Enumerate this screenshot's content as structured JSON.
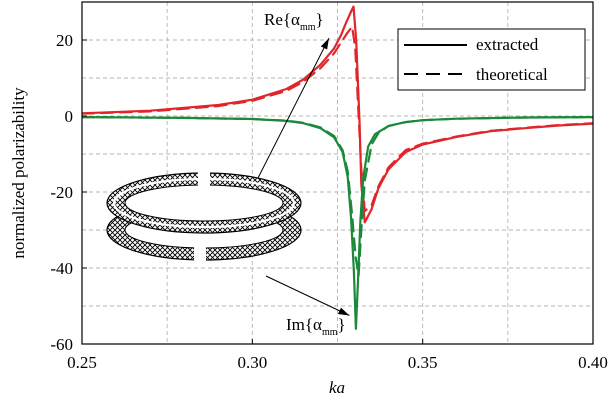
{
  "chart_data": {
    "type": "line",
    "xlabel": "ka",
    "ylabel": "normalized polarizability",
    "xlim": [
      0.25,
      0.4
    ],
    "ylim": [
      -60,
      30
    ],
    "xticks": [
      0.25,
      0.3,
      0.35,
      0.4
    ],
    "yticks": [
      -60,
      -40,
      -20,
      0,
      20
    ],
    "xtick_labels": [
      "0.25",
      "0.30",
      "0.35",
      "0.40"
    ],
    "ytick_labels": [
      "-60",
      "-40",
      "-20",
      "0",
      "20"
    ],
    "grid": true,
    "legend_position": "top-right",
    "legend": [
      {
        "label": "extracted",
        "style": "solid"
      },
      {
        "label": "theoretical",
        "style": "dashed"
      }
    ],
    "series": [
      {
        "component": "real",
        "style": "solid",
        "color": "#e0262b",
        "x": [
          0.25,
          0.27,
          0.29,
          0.3,
          0.31,
          0.315,
          0.32,
          0.324,
          0.326,
          0.3275,
          0.329,
          0.3297,
          0.3305,
          0.3315,
          0.332,
          0.333,
          0.335,
          0.337,
          0.34,
          0.345,
          0.35,
          0.36,
          0.37,
          0.38,
          0.39,
          0.4
        ],
        "y": [
          0.7,
          1.4,
          2.9,
          4.3,
          7.1,
          9.6,
          13.5,
          17.8,
          21.2,
          24.5,
          27.5,
          28.8,
          20.0,
          -2.0,
          -18.0,
          -28.0,
          -24.5,
          -19.0,
          -14.0,
          -9.5,
          -7.5,
          -5.5,
          -4.0,
          -3.2,
          -2.5,
          -2.0
        ]
      },
      {
        "component": "real",
        "style": "dashed",
        "color": "#e0262b",
        "x": [
          0.25,
          0.27,
          0.29,
          0.3,
          0.31,
          0.315,
          0.32,
          0.324,
          0.326,
          0.328,
          0.3293,
          0.3302,
          0.331,
          0.332,
          0.333,
          0.335,
          0.337,
          0.34,
          0.345,
          0.35,
          0.36,
          0.37,
          0.38,
          0.39,
          0.4
        ],
        "y": [
          0.6,
          1.2,
          2.6,
          4.0,
          6.6,
          9.0,
          12.6,
          16.5,
          19.3,
          22.0,
          23.5,
          18.0,
          4.0,
          -14.0,
          -25.0,
          -23.5,
          -18.5,
          -13.5,
          -9.0,
          -7.3,
          -5.4,
          -3.9,
          -3.1,
          -2.4,
          -1.9
        ]
      },
      {
        "component": "imaginary",
        "style": "solid",
        "color": "#1a8a3a",
        "x": [
          0.25,
          0.28,
          0.3,
          0.31,
          0.315,
          0.32,
          0.324,
          0.3265,
          0.328,
          0.329,
          0.3298,
          0.3304,
          0.331,
          0.3317,
          0.3325,
          0.334,
          0.336,
          0.34,
          0.345,
          0.35,
          0.36,
          0.38,
          0.4
        ],
        "y": [
          -0.3,
          -0.5,
          -0.8,
          -1.3,
          -1.9,
          -3.2,
          -5.6,
          -9.5,
          -16.0,
          -27.0,
          -41.0,
          -56.0,
          -44.0,
          -28.0,
          -16.5,
          -8.0,
          -4.8,
          -2.6,
          -1.6,
          -1.1,
          -0.7,
          -0.4,
          -0.3
        ]
      },
      {
        "component": "imaginary",
        "style": "dashed",
        "color": "#1a8a3a",
        "x": [
          0.25,
          0.28,
          0.3,
          0.31,
          0.315,
          0.32,
          0.324,
          0.3265,
          0.328,
          0.3293,
          0.3303,
          0.3312,
          0.332,
          0.333,
          0.335,
          0.337,
          0.34,
          0.345,
          0.35,
          0.36,
          0.38,
          0.4
        ],
        "y": [
          -0.3,
          -0.5,
          -0.8,
          -1.2,
          -1.8,
          -3.0,
          -5.3,
          -9.0,
          -14.5,
          -26.0,
          -37.0,
          -42.0,
          -30.0,
          -17.0,
          -7.5,
          -4.5,
          -2.6,
          -1.6,
          -1.1,
          -0.7,
          -0.4,
          -0.3
        ]
      }
    ],
    "annotations": [
      {
        "text": "Re{α",
        "subscript": "mm",
        "suffix": "}",
        "points_to": [
          0.3225,
          20.5
        ]
      },
      {
        "text": "Im{α",
        "subscript": "mm",
        "suffix": "}",
        "points_to": [
          0.3285,
          -52.5
        ]
      }
    ]
  },
  "colors": {
    "real": "#e0262b",
    "imaginary": "#1a8a3a",
    "grid": "#b5b5b5",
    "axis": "#000000"
  },
  "inset": {
    "icon": "split-ring-resonator-icon"
  }
}
